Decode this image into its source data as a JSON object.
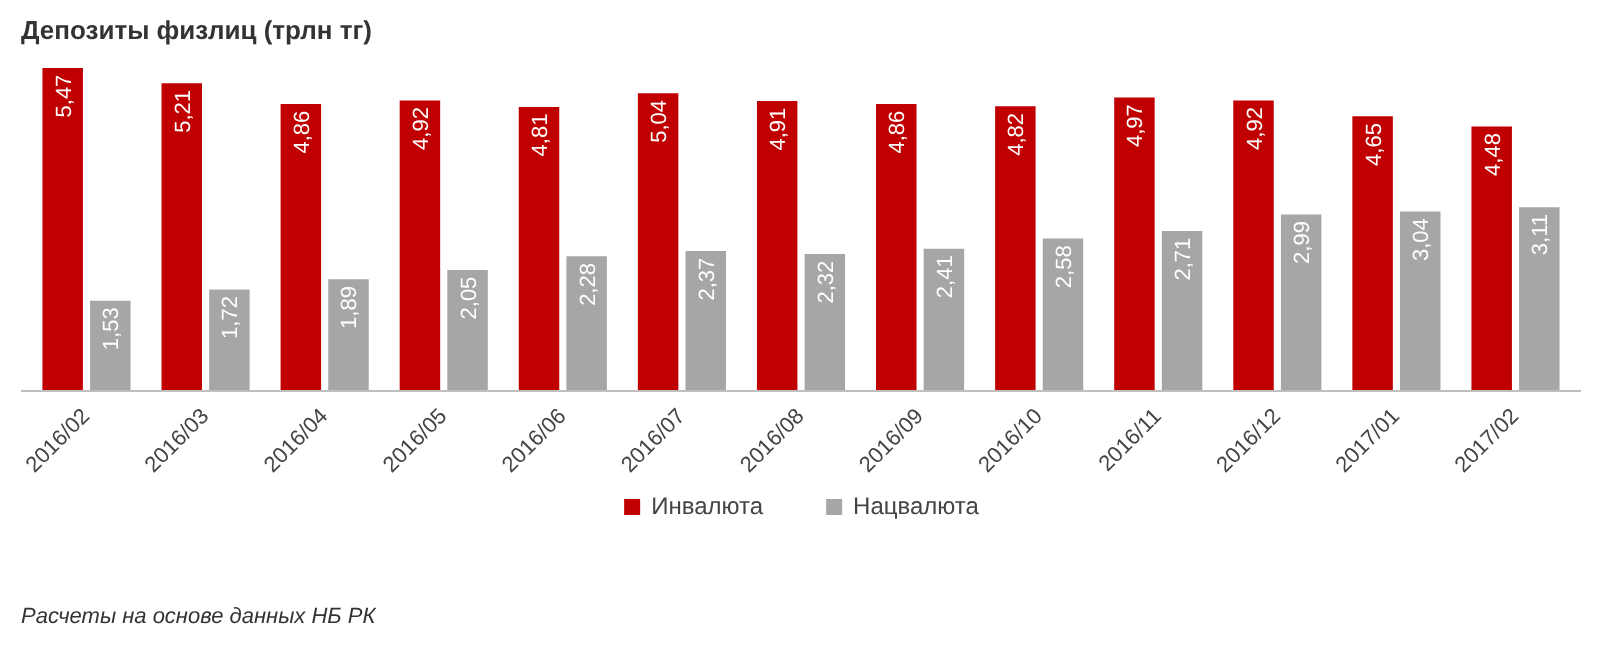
{
  "chart_data": {
    "type": "bar",
    "title": "Депозиты физлиц (трлн тг)",
    "categories": [
      "2016/02",
      "2016/03",
      "2016/04",
      "2016/05",
      "2016/06",
      "2016/07",
      "2016/08",
      "2016/09",
      "2016/10",
      "2016/11",
      "2016/12",
      "2017/01",
      "2017/02"
    ],
    "series": [
      {
        "name": "Инвалюта",
        "color": "#c00000",
        "values": [
          5.47,
          5.21,
          4.86,
          4.92,
          4.81,
          5.04,
          4.91,
          4.86,
          4.82,
          4.97,
          4.92,
          4.65,
          4.48
        ],
        "value_labels": [
          "5,47",
          "5,21",
          "4,86",
          "4,92",
          "4,81",
          "5,04",
          "4,91",
          "4,86",
          "4,82",
          "4,97",
          "4,92",
          "4,65",
          "4,48"
        ]
      },
      {
        "name": "Нацвалюта",
        "color": "#a6a6a6",
        "values": [
          1.53,
          1.72,
          1.89,
          2.05,
          2.28,
          2.37,
          2.32,
          2.41,
          2.58,
          2.71,
          2.99,
          3.04,
          3.11
        ],
        "value_labels": [
          "1,53",
          "1,72",
          "1,89",
          "2,05",
          "2,28",
          "2,37",
          "2,32",
          "2,41",
          "2,58",
          "2,71",
          "2,99",
          "3,04",
          "3,11"
        ]
      }
    ],
    "legend": "bottom",
    "annotations": [
      "Расчеты на основе данных НБ РК"
    ]
  }
}
